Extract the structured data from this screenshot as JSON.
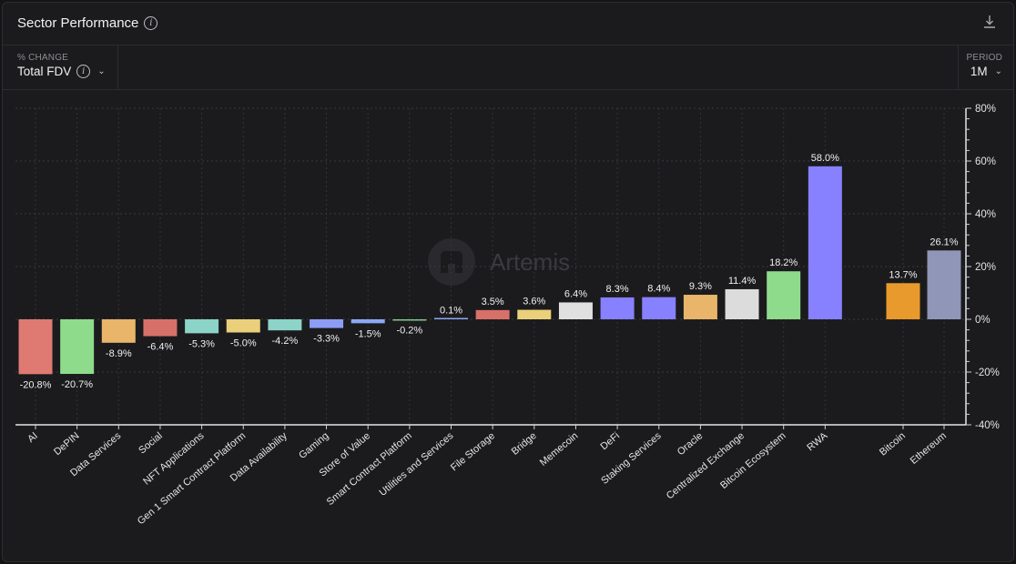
{
  "header": {
    "title": "Sector Performance"
  },
  "controls": {
    "metric_label": "% CHANGE",
    "metric_value": "Total FDV",
    "period_label": "PERIOD",
    "period_value": "1M"
  },
  "watermark": "Artemis",
  "chart_data": {
    "type": "bar",
    "categories": [
      "AI",
      "DePIN",
      "Data Services",
      "Social",
      "NFT Applications",
      "Gen 1 Smart Contract Platform",
      "Data Availability",
      "Gaming",
      "Store of Value",
      "Smart Contract Platform",
      "Utilities and Services",
      "File Storage",
      "Bridge",
      "Memecoin",
      "DeFi",
      "Staking Services",
      "Oracle",
      "Centralized Exchange",
      "Bitcoin Ecosystem",
      "RWA",
      "Bitcoin",
      "Ethereum"
    ],
    "values": [
      -20.8,
      -20.7,
      -8.9,
      -6.4,
      -5.3,
      -5.0,
      -4.2,
      -3.3,
      -1.5,
      -0.2,
      0.1,
      3.5,
      3.6,
      6.4,
      8.3,
      8.4,
      9.3,
      11.4,
      18.2,
      58.0,
      13.7,
      26.1
    ],
    "labels": [
      "-20.8%",
      "-20.7%",
      "-8.9%",
      "-6.4%",
      "-5.3%",
      "-5.0%",
      "-4.2%",
      "-3.3%",
      "-1.5%",
      "-0.2%",
      "0.1%",
      "3.5%",
      "3.6%",
      "6.4%",
      "8.3%",
      "8.4%",
      "9.3%",
      "11.4%",
      "18.2%",
      "58.0%",
      "13.7%",
      "26.1%"
    ],
    "colors": [
      "#df7a72",
      "#8fdb8c",
      "#e8b56a",
      "#d8706a",
      "#8cd3c8",
      "#ead07a",
      "#8cd3c8",
      "#8d9df5",
      "#8ca7f5",
      "#7fc98a",
      "#8ca7f5",
      "#d8706a",
      "#ead07a",
      "#e0e0e0",
      "#8780ff",
      "#8780ff",
      "#e8b56a",
      "#dcdcdc",
      "#8fdb8c",
      "#8780ff",
      "#e89a2c",
      "#8f96b8"
    ],
    "ylim": [
      -40,
      80
    ],
    "yticks": [
      "80%",
      "60%",
      "40%",
      "20%",
      "0%",
      "-20%",
      "-40%"
    ],
    "ytick_values": [
      80,
      60,
      40,
      20,
      0,
      -20,
      -40
    ],
    "grid": true
  }
}
